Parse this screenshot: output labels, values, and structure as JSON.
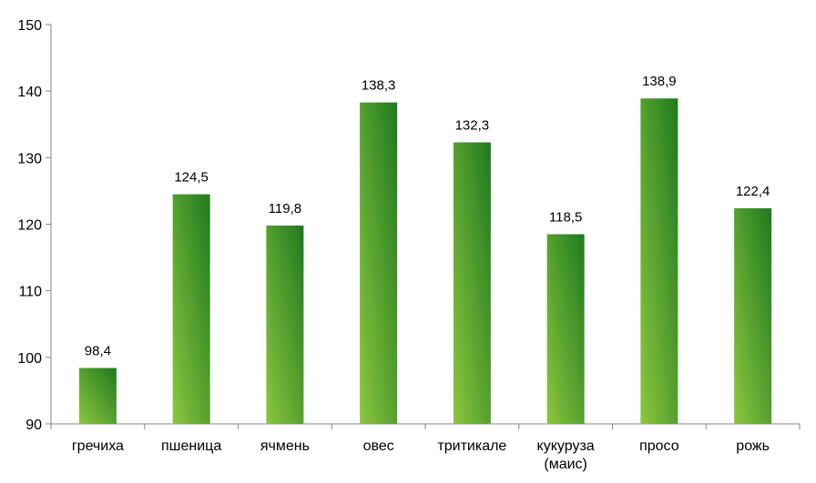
{
  "chart_data": {
    "type": "bar",
    "categories": [
      "гречиха",
      "пшеница",
      "ячмень",
      "овес",
      "тритикале",
      "кукуруза (маис)",
      "просо",
      "рожь"
    ],
    "category_lines": [
      [
        "гречиха"
      ],
      [
        "пшеница"
      ],
      [
        "ячмень"
      ],
      [
        "овес"
      ],
      [
        "тритикале"
      ],
      [
        "кукуруза",
        "(маис)"
      ],
      [
        "просо"
      ],
      [
        "рожь"
      ]
    ],
    "values": [
      98.4,
      124.5,
      119.8,
      138.3,
      132.3,
      118.5,
      138.9,
      122.4
    ],
    "value_labels": [
      "98,4",
      "124,5",
      "119,8",
      "138,3",
      "132,3",
      "118,5",
      "138,9",
      "122,4"
    ],
    "ylim": [
      90,
      150
    ],
    "yticks": [
      90,
      100,
      110,
      120,
      130,
      140,
      150
    ],
    "ytick_labels": [
      "90",
      "100",
      "110",
      "120",
      "130",
      "140",
      "150"
    ],
    "grid": false,
    "bar_color_light": "#8dc63f",
    "bar_color_dark": "#1e7a1e",
    "axis_color": "#868686"
  }
}
